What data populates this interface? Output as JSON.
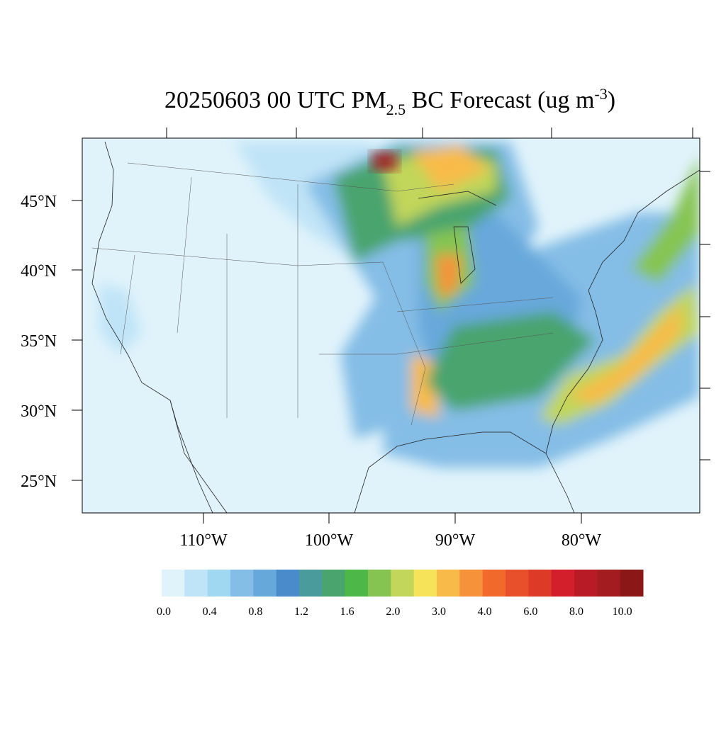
{
  "title": {
    "main": "20250603 00 UTC PM",
    "sub": "2.5",
    "rest": " BC Forecast (ug m",
    "sup": "-3",
    "end": ")"
  },
  "lat_labels": [
    "45°N",
    "40°N",
    "35°N",
    "30°N",
    "25°N"
  ],
  "lon_labels": [
    "110°W",
    "100°W",
    "90°W",
    "80°W"
  ],
  "colorbar": {
    "colors": [
      "#e0f3fb",
      "#c0e4f7",
      "#a0d8f2",
      "#84bde6",
      "#67a8db",
      "#4a8bcc",
      "#4a9c9c",
      "#4aa46e",
      "#4db848",
      "#86c452",
      "#c1d65a",
      "#f7e35a",
      "#f8bb4a",
      "#f6933a",
      "#f26a2b",
      "#e84f2b",
      "#de3a28",
      "#d31f2b",
      "#b81b26",
      "#a31c20",
      "#8c1717"
    ],
    "labels": [
      "0.0",
      "0.4",
      "0.8",
      "1.2",
      "1.6",
      "2.0",
      "3.0",
      "4.0",
      "6.0",
      "8.0",
      "10.0"
    ]
  }
}
